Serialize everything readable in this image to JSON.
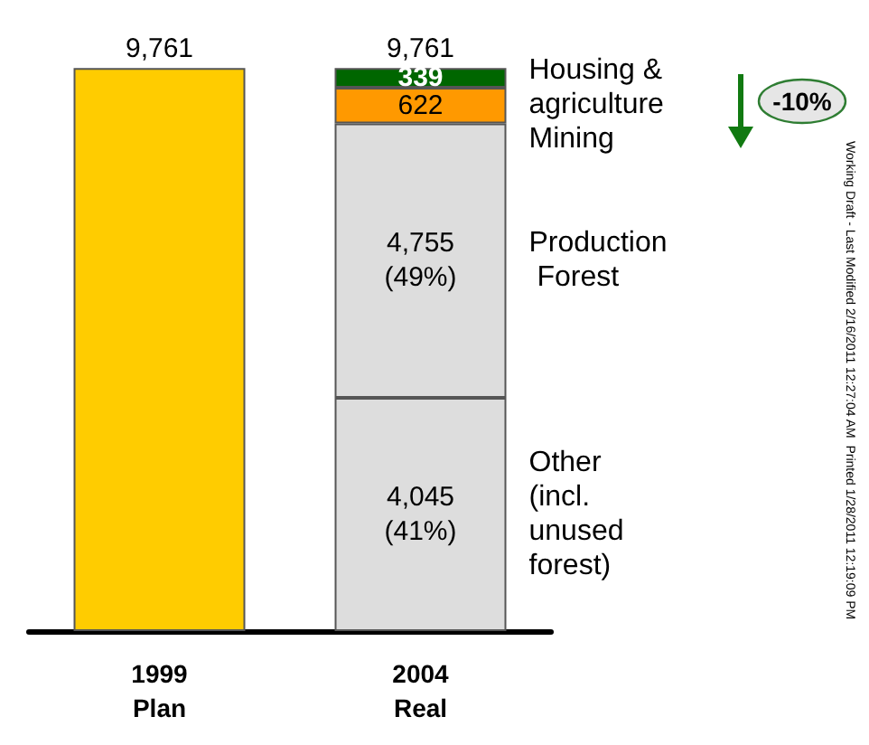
{
  "chart_data": {
    "type": "bar",
    "categories": [
      "1999\nPlan",
      "2004\nReal"
    ],
    "series": [
      {
        "color": "#ffcc00",
        "values": [
          9761,
          null
        ],
        "value_labels": [
          null,
          null
        ]
      },
      {
        "name": "Other\n(incl.\nunused\nforest)",
        "color": "#dddddd",
        "values": [
          null,
          4045
        ],
        "value_labels": [
          null,
          "4,045\n(41%)"
        ]
      },
      {
        "name": "Production\n Forest",
        "color": "#dddddd",
        "values": [
          null,
          4755
        ],
        "value_labels": [
          null,
          "4,755\n(49%)"
        ]
      },
      {
        "name": "Mining",
        "color": "#ff9900",
        "values": [
          null,
          622
        ],
        "value_labels": [
          null,
          "622"
        ]
      },
      {
        "name": "Housing &\nagriculture",
        "color": "#006600",
        "values": [
          null,
          339
        ],
        "value_labels": [
          null,
          "339"
        ]
      }
    ],
    "totals": [
      "9,761",
      "9,761"
    ],
    "annotations": [
      "-10%",
      "Working Draft - Last Modified 2/16/2011 12:27:04 AM  Printed 1/28/2011 12:19:09 PM"
    ],
    "stacked": true
  }
}
